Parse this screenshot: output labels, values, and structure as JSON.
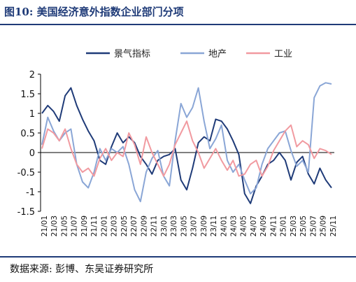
{
  "header": {
    "title": "图10:  美国经济意外指数企业部门分项"
  },
  "footer": {
    "source": "数据来源:  彭博、东吴证券研究所"
  },
  "chart_data": {
    "type": "line",
    "title": "",
    "xlabel": "",
    "ylabel": "",
    "ylim": [
      -1.5,
      2
    ],
    "yticks": [
      "2",
      "1.5",
      "1",
      "0.5",
      "0",
      "-0.5",
      "-1",
      "-1.5"
    ],
    "x_ticks": [
      "21/01",
      "21/03",
      "21/05",
      "21/07",
      "21/09",
      "21/11",
      "22/01",
      "22/03",
      "22/05",
      "22/07",
      "22/09",
      "22/11",
      "23/01",
      "23/03",
      "23/05",
      "23/07",
      "23/09",
      "23/11",
      "24/01",
      "24/03",
      "24/05",
      "24/07",
      "24/09",
      "24/11",
      "25/01",
      "25/03",
      "25/05",
      "25/07",
      "25/09",
      "25/11"
    ],
    "legend_position": "top",
    "series": [
      {
        "name": "景气指标",
        "color": "#1f3b78",
        "values": [
          1.0,
          1.2,
          1.05,
          0.8,
          1.45,
          1.65,
          1.2,
          0.85,
          0.55,
          0.3,
          -0.2,
          -0.3,
          0.15,
          0.5,
          0.25,
          0.4,
          0.25,
          -0.1,
          -0.3,
          -0.55,
          -0.2,
          -0.1,
          -0.05,
          0.1,
          -0.7,
          -0.95,
          -0.4,
          0.25,
          0.4,
          0.3,
          0.85,
          0.8,
          0.6,
          0.3,
          -0.05,
          -1.05,
          -1.3,
          -0.85,
          -0.6,
          -0.3,
          -0.2,
          0.0,
          -0.2,
          -0.7,
          -0.25,
          -0.1,
          -0.55,
          -0.8,
          -0.4,
          -0.7,
          -0.9
        ]
      },
      {
        "name": "地产",
        "color": "#8aa6d6",
        "values": [
          0.2,
          0.9,
          0.55,
          0.3,
          0.5,
          0.6,
          -0.3,
          -0.75,
          -0.9,
          -0.5,
          0.1,
          -0.2,
          0.1,
          0.0,
          0.15,
          -0.3,
          -0.95,
          -1.25,
          -0.5,
          -0.15,
          0.05,
          -0.6,
          -0.85,
          0.3,
          1.25,
          0.9,
          1.15,
          1.65,
          0.8,
          0.1,
          0.35,
          0.7,
          -0.2,
          -0.5,
          -0.3,
          -0.7,
          -1.05,
          -0.9,
          -0.3,
          0.1,
          0.3,
          0.5,
          0.55,
          0.05,
          -0.35,
          -0.2,
          -0.5,
          1.4,
          1.7,
          1.78,
          1.75
        ]
      },
      {
        "name": "工业",
        "color": "#f19aa0",
        "values": [
          0.1,
          0.6,
          0.5,
          0.3,
          0.6,
          0.1,
          -0.3,
          -0.5,
          -0.4,
          -0.6,
          -0.15,
          0.1,
          -0.2,
          0.0,
          -0.1,
          0.5,
          0.2,
          -0.3,
          0.4,
          0.0,
          -0.3,
          -0.6,
          -0.3,
          0.2,
          0.5,
          0.8,
          0.3,
          0.0,
          -0.4,
          -0.15,
          0.1,
          -0.2,
          -0.45,
          -0.2,
          -0.6,
          -0.55,
          -0.3,
          -0.2,
          -0.6,
          -0.35,
          0.05,
          0.3,
          0.55,
          0.7,
          0.15,
          0.3,
          0.2,
          -0.15,
          0.1,
          0.05,
          -0.05
        ]
      }
    ]
  }
}
